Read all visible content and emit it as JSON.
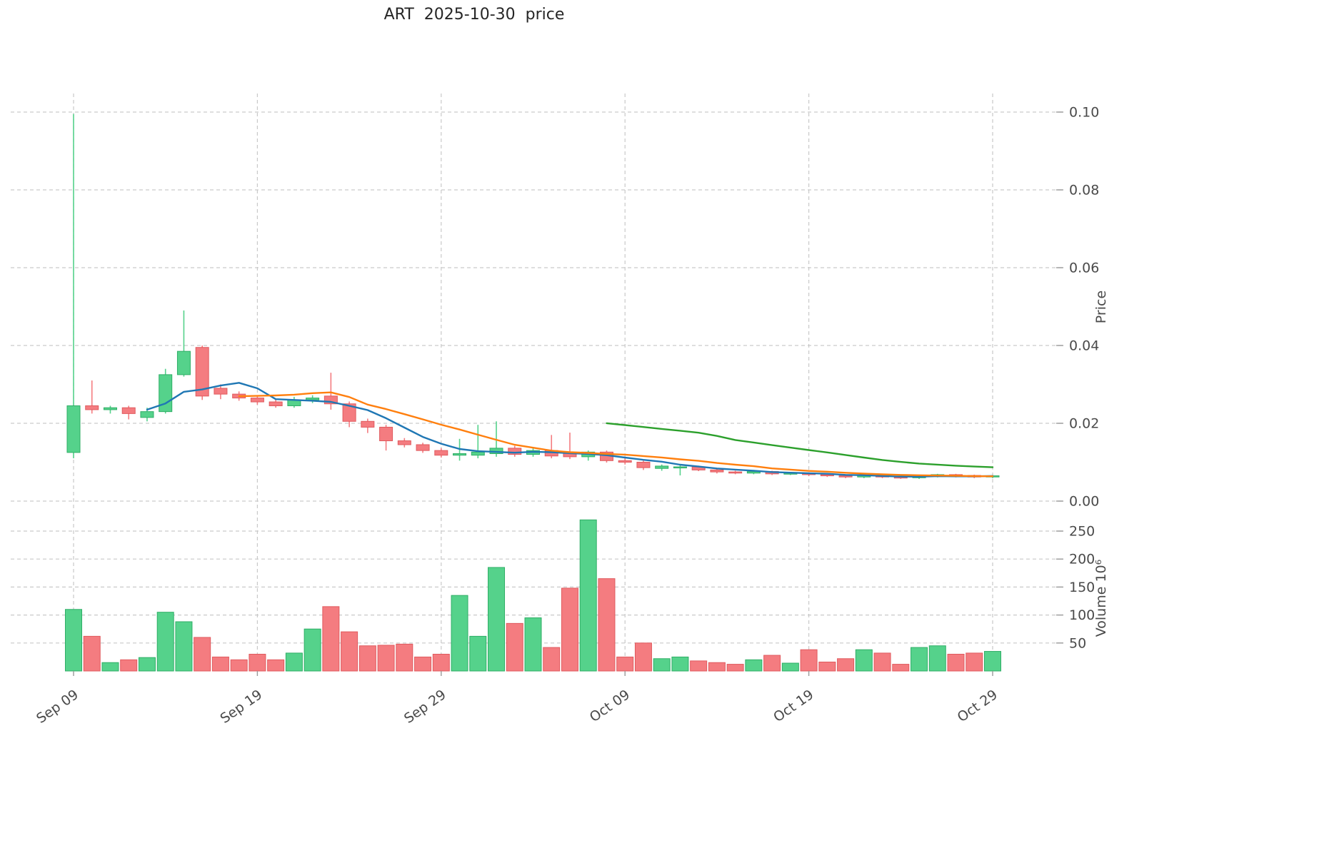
{
  "chart_data": {
    "type": "candlestick",
    "title": "ART  2025-10-30  price",
    "ylabel_price": "Price",
    "ylabel_volume": "Volume  10⁶",
    "price_ticks": [
      0,
      0.02,
      0.04,
      0.06,
      0.08,
      0.1
    ],
    "volume_ticks": [
      50,
      100,
      150,
      200,
      250
    ],
    "price_range": [
      0,
      0.107
    ],
    "volume_range": [
      0,
      282
    ],
    "grid": "dashed",
    "legend": "none",
    "x_ticks": [
      {
        "index": 0,
        "label": "Sep 09"
      },
      {
        "index": 10,
        "label": "Sep 19"
      },
      {
        "index": 20,
        "label": "Sep 29"
      },
      {
        "index": 30,
        "label": "Oct 09"
      },
      {
        "index": 40,
        "label": "Oct 19"
      },
      {
        "index": 50,
        "label": "Oct 29"
      }
    ],
    "dates": [
      "2025-09-09",
      "2025-09-10",
      "2025-09-11",
      "2025-09-12",
      "2025-09-13",
      "2025-09-14",
      "2025-09-15",
      "2025-09-16",
      "2025-09-17",
      "2025-09-18",
      "2025-09-19",
      "2025-09-20",
      "2025-09-21",
      "2025-09-22",
      "2025-09-23",
      "2025-09-24",
      "2025-09-25",
      "2025-09-26",
      "2025-09-27",
      "2025-09-28",
      "2025-09-29",
      "2025-09-30",
      "2025-10-01",
      "2025-10-02",
      "2025-10-03",
      "2025-10-04",
      "2025-10-05",
      "2025-10-06",
      "2025-10-07",
      "2025-10-08",
      "2025-10-09",
      "2025-10-10",
      "2025-10-11",
      "2025-10-12",
      "2025-10-13",
      "2025-10-14",
      "2025-10-15",
      "2025-10-16",
      "2025-10-17",
      "2025-10-18",
      "2025-10-19",
      "2025-10-20",
      "2025-10-21",
      "2025-10-22",
      "2025-10-23",
      "2025-10-24",
      "2025-10-25",
      "2025-10-26",
      "2025-10-27",
      "2025-10-28",
      "2025-10-29"
    ],
    "ohlc": [
      [
        0.0125,
        0.0995,
        0.011,
        0.0245
      ],
      [
        0.0245,
        0.031,
        0.0225,
        0.0235
      ],
      [
        0.0235,
        0.0245,
        0.0225,
        0.024
      ],
      [
        0.024,
        0.0245,
        0.021,
        0.0225
      ],
      [
        0.0215,
        0.024,
        0.0205,
        0.023
      ],
      [
        0.023,
        0.034,
        0.0225,
        0.0325
      ],
      [
        0.0325,
        0.049,
        0.032,
        0.0385
      ],
      [
        0.0395,
        0.04,
        0.026,
        0.027
      ],
      [
        0.029,
        0.03,
        0.0262,
        0.0275
      ],
      [
        0.0275,
        0.0282,
        0.0258,
        0.0265
      ],
      [
        0.0265,
        0.0272,
        0.0248,
        0.0255
      ],
      [
        0.0255,
        0.0262,
        0.024,
        0.0245
      ],
      [
        0.0245,
        0.0268,
        0.024,
        0.026
      ],
      [
        0.026,
        0.0272,
        0.0252,
        0.0265
      ],
      [
        0.027,
        0.033,
        0.0235,
        0.025
      ],
      [
        0.025,
        0.0256,
        0.019,
        0.0205
      ],
      [
        0.0205,
        0.0212,
        0.0175,
        0.019
      ],
      [
        0.019,
        0.0196,
        0.013,
        0.0155
      ],
      [
        0.0155,
        0.0162,
        0.0138,
        0.0145
      ],
      [
        0.0145,
        0.015,
        0.0124,
        0.013
      ],
      [
        0.013,
        0.0136,
        0.0112,
        0.0118
      ],
      [
        0.0118,
        0.016,
        0.0104,
        0.0122
      ],
      [
        0.0118,
        0.0196,
        0.011,
        0.0126
      ],
      [
        0.0122,
        0.0205,
        0.0114,
        0.0136
      ],
      [
        0.0136,
        0.0142,
        0.0114,
        0.012
      ],
      [
        0.012,
        0.0136,
        0.0114,
        0.013
      ],
      [
        0.013,
        0.017,
        0.011,
        0.0116
      ],
      [
        0.0124,
        0.0176,
        0.0108,
        0.0114
      ],
      [
        0.0114,
        0.013,
        0.0104,
        0.0126
      ],
      [
        0.0126,
        0.013,
        0.0099,
        0.0104
      ],
      [
        0.0104,
        0.011,
        0.0094,
        0.01
      ],
      [
        0.01,
        0.0104,
        0.008,
        0.0086
      ],
      [
        0.0084,
        0.0094,
        0.0078,
        0.009
      ],
      [
        0.0086,
        0.0092,
        0.0066,
        0.0088
      ],
      [
        0.0088,
        0.0091,
        0.0077,
        0.008
      ],
      [
        0.008,
        0.0083,
        0.0071,
        0.0075
      ],
      [
        0.0075,
        0.0078,
        0.0069,
        0.0072
      ],
      [
        0.0072,
        0.008,
        0.0069,
        0.0076
      ],
      [
        0.0076,
        0.0078,
        0.0067,
        0.007
      ],
      [
        0.007,
        0.0075,
        0.0067,
        0.0072
      ],
      [
        0.0072,
        0.0074,
        0.0064,
        0.0068
      ],
      [
        0.0068,
        0.007,
        0.0062,
        0.0065
      ],
      [
        0.0065,
        0.0067,
        0.0059,
        0.0062
      ],
      [
        0.0062,
        0.0068,
        0.0059,
        0.0066
      ],
      [
        0.0066,
        0.0068,
        0.0059,
        0.0062
      ],
      [
        0.0062,
        0.0064,
        0.0057,
        0.006
      ],
      [
        0.006,
        0.0066,
        0.0057,
        0.0064
      ],
      [
        0.0064,
        0.007,
        0.0061,
        0.0068
      ],
      [
        0.0068,
        0.007,
        0.0061,
        0.0064
      ],
      [
        0.0066,
        0.0068,
        0.0059,
        0.0062
      ],
      [
        0.0062,
        0.0067,
        0.0059,
        0.0065
      ]
    ],
    "volume_millions": [
      110,
      62,
      15,
      20,
      24,
      105,
      88,
      60,
      25,
      20,
      30,
      20,
      32,
      75,
      115,
      70,
      45,
      46,
      48,
      25,
      30,
      135,
      62,
      185,
      85,
      95,
      42,
      148,
      270,
      165,
      25,
      50,
      22,
      25,
      18,
      15,
      12,
      20,
      28,
      14,
      38,
      16,
      22,
      38,
      32,
      12,
      42,
      45,
      30,
      32,
      35
    ],
    "overlays": [
      {
        "name": "sma-5",
        "period": 5,
        "color": "#1f77b4"
      },
      {
        "name": "sma-10",
        "period": 10,
        "color": "#ff7f0e"
      },
      {
        "name": "sma-30",
        "period": 30,
        "color": "#2ca02c"
      }
    ],
    "colors": {
      "up": "#55d28b",
      "up_edge": "#2fae66",
      "down": "#f47c80",
      "down_edge": "#e05a5e",
      "grid": "#c9c9c9",
      "text": "#4a4a4a",
      "title": "#262626",
      "background": "#ffffff"
    }
  }
}
